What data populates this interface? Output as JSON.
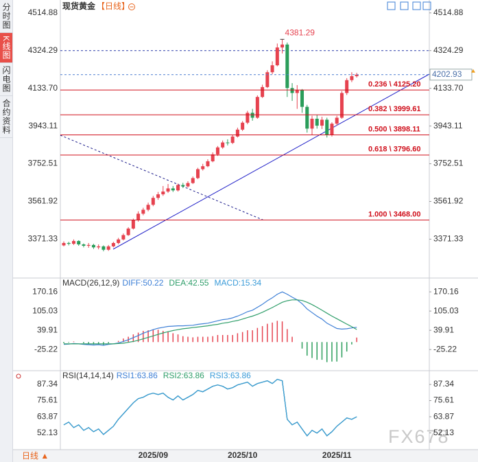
{
  "sidebar": {
    "tabs": [
      "分时图",
      "K线图",
      "闪电图",
      "合约资料"
    ],
    "active": 1
  },
  "chart_data": [
    {
      "type": "candlestick",
      "title": "现货黄金",
      "subtitle": "【日线】",
      "categories": [
        null,
        null,
        null,
        null,
        null,
        null,
        null,
        null,
        null,
        null,
        null,
        null,
        null,
        null,
        null,
        null,
        null,
        null,
        "2025/09",
        null,
        null,
        null,
        null,
        null,
        null,
        null,
        null,
        null,
        null,
        null,
        null,
        null,
        null,
        null,
        null,
        null,
        "2025/10",
        null,
        null,
        null,
        null,
        null,
        null,
        null,
        null,
        null,
        null,
        null,
        null,
        null,
        null,
        null,
        null,
        null,
        null,
        "2025/11",
        null,
        null,
        null,
        null
      ],
      "candles": {
        "open": [
          3340,
          3352,
          3348,
          3362,
          3345,
          3338,
          3342,
          3330,
          3335,
          3318,
          3335,
          3352,
          3370,
          3392,
          3425,
          3468,
          3500,
          3520,
          3545,
          3580,
          3598,
          3612,
          3628,
          3618,
          3645,
          3638,
          3655,
          3680,
          3725,
          3740,
          3765,
          3800,
          3835,
          3860,
          3858,
          3890,
          3925,
          3960,
          4010,
          3985,
          4090,
          4140,
          4215,
          4250,
          4340,
          4355,
          4135,
          4110,
          4125,
          4040,
          3930,
          3980,
          3945,
          3975,
          3900,
          3955,
          3985,
          4110,
          4175,
          4195
        ],
        "high": [
          3360,
          3358,
          3370,
          3366,
          3350,
          3352,
          3348,
          3345,
          3340,
          3342,
          3358,
          3378,
          3400,
          3432,
          3475,
          3512,
          3530,
          3556,
          3590,
          3610,
          3640,
          3650,
          3640,
          3652,
          3656,
          3664,
          3688,
          3732,
          3752,
          3775,
          3810,
          3842,
          3870,
          3876,
          3898,
          3935,
          3968,
          4020,
          4030,
          4098,
          4152,
          4225,
          4270,
          4360,
          4381.29,
          4365,
          4160,
          4150,
          4130,
          4050,
          3995,
          4000,
          3990,
          3985,
          3962,
          3995,
          4120,
          4185,
          4215,
          4212
        ],
        "low": [
          3335,
          3340,
          3342,
          3338,
          3330,
          3328,
          3322,
          3320,
          3310,
          3312,
          3330,
          3346,
          3365,
          3388,
          3420,
          3460,
          3492,
          3512,
          3538,
          3570,
          3590,
          3605,
          3610,
          3612,
          3630,
          3632,
          3650,
          3675,
          3718,
          3735,
          3760,
          3792,
          3828,
          3845,
          3852,
          3885,
          3918,
          3952,
          3970,
          3980,
          4085,
          4135,
          4205,
          4245,
          4310,
          4090,
          4070,
          4030,
          4010,
          3910,
          3900,
          3930,
          3928,
          3885,
          3890,
          3945,
          3980,
          4100,
          4165,
          4188
        ],
        "close": [
          3352,
          3348,
          3362,
          3345,
          3338,
          3342,
          3330,
          3335,
          3318,
          3335,
          3352,
          3370,
          3392,
          3425,
          3468,
          3500,
          3520,
          3545,
          3580,
          3598,
          3612,
          3628,
          3618,
          3645,
          3638,
          3655,
          3680,
          3725,
          3740,
          3765,
          3800,
          3835,
          3860,
          3858,
          3890,
          3925,
          3960,
          4010,
          3985,
          4090,
          4140,
          4215,
          4250,
          4340,
          4355,
          4135,
          4110,
          4125,
          4040,
          3930,
          3980,
          3945,
          3975,
          3900,
          3955,
          3985,
          4110,
          4175,
          4195,
          4202.93
        ]
      },
      "up_color": "#e6424f",
      "down_color": "#2a9d5a",
      "ylim": [
        3175,
        4580
      ],
      "yticks": [
        4514.88,
        4324.29,
        {
          "value": 4133.7,
          "label": "4133.70"
        },
        3943.11,
        3752.51,
        3561.92,
        3371.33
      ],
      "fib_levels": [
        {
          "value": 4125.2,
          "label": "0.236 \\ 4125.20"
        },
        {
          "value": 3999.61,
          "label": "0.382 \\ 3999.61"
        },
        {
          "value": 3898.11,
          "label": "0.500 \\ 3898.11"
        },
        {
          "value": 3796.6,
          "label": "0.618 \\ 3796.60"
        },
        {
          "value": 3468,
          "label": "1.000 \\ 3468.00"
        }
      ],
      "fib_color": "#d0101c"
    },
    {
      "type": "macd",
      "title": "MACD(26,12,9)",
      "series": [
        {
          "name": "DIFF:50.22",
          "color": "#3d7fd6",
          "values": [
            -8,
            -7,
            -5,
            -6,
            -8,
            -9,
            -10,
            -9,
            -11,
            -8,
            -6,
            -3,
            2,
            8,
            15,
            22,
            30,
            36,
            42,
            47,
            50,
            53,
            54,
            55,
            55,
            56,
            57,
            60,
            62,
            64,
            68,
            72,
            76,
            78,
            82,
            88,
            95,
            103,
            108,
            118,
            128,
            140,
            150,
            162,
            170,
            162,
            152,
            143,
            130,
            112,
            100,
            88,
            78,
            64,
            55,
            46,
            44,
            45,
            48,
            50.22
          ]
        },
        {
          "name": "DEA:42.55",
          "color": "#2f9e6a",
          "values": [
            -6,
            -6,
            -6,
            -6,
            -6,
            -6,
            -6,
            -6,
            -6,
            -6,
            -6,
            -5,
            -4,
            -1,
            2,
            6,
            11,
            16,
            21,
            26,
            31,
            35,
            39,
            42,
            45,
            47,
            49,
            51,
            53,
            55,
            58,
            60,
            64,
            66,
            70,
            73,
            78,
            83,
            88,
            94,
            101,
            109,
            117,
            126,
            135,
            140,
            143,
            143,
            141,
            135,
            127,
            118,
            108,
            98,
            88,
            79,
            70,
            61,
            52,
            42.55
          ]
        },
        {
          "name": "MACD:15.34",
          "color": "#3a9bd8",
          "values": [
            -4,
            -2,
            2,
            0,
            -4,
            -6,
            -8,
            -6,
            -10,
            -4,
            0,
            4,
            12,
            18,
            26,
            32,
            38,
            40,
            42,
            42,
            38,
            36,
            30,
            26,
            20,
            18,
            16,
            18,
            18,
            18,
            20,
            24,
            24,
            24,
            24,
            30,
            34,
            40,
            40,
            48,
            54,
            62,
            66,
            72,
            70,
            44,
            18,
            0,
            -22,
            -46,
            -54,
            -60,
            -60,
            -68,
            -66,
            -66,
            -52,
            -32,
            -8,
            15.34
          ]
        }
      ],
      "up_color": "#e6424f",
      "down_color": "#2a9d5a",
      "ylim": [
        -97,
        217
      ],
      "yticks": [
        170.16,
        105.03,
        39.91,
        -25.22
      ]
    },
    {
      "type": "line",
      "title": "RSI(14,14,14)",
      "series": [
        {
          "name": "RSI1:63.86",
          "color": "#3d7fd6",
          "values": [
            58,
            60,
            56,
            58,
            54,
            56,
            53,
            55,
            51,
            54,
            57,
            62,
            66,
            70,
            74,
            77,
            78,
            80,
            81,
            80,
            81,
            78,
            76,
            79,
            76,
            78,
            80,
            83,
            82,
            84,
            86,
            87,
            86,
            84,
            85,
            87,
            88,
            89,
            86,
            88,
            89,
            90,
            88,
            91,
            90,
            62,
            58,
            60,
            55,
            50,
            54,
            52,
            55,
            50,
            53,
            57,
            60,
            63,
            62,
            63.86
          ]
        },
        {
          "name": "RSI2:63.86",
          "color": "#2f9e6a",
          "values": [
            58,
            60,
            56,
            58,
            54,
            56,
            53,
            55,
            51,
            54,
            57,
            62,
            66,
            70,
            74,
            77,
            78,
            80,
            81,
            80,
            81,
            78,
            76,
            79,
            76,
            78,
            80,
            83,
            82,
            84,
            86,
            87,
            86,
            84,
            85,
            87,
            88,
            89,
            86,
            88,
            89,
            90,
            88,
            91,
            90,
            62,
            58,
            60,
            55,
            50,
            54,
            52,
            55,
            50,
            53,
            57,
            60,
            63,
            62,
            63.86
          ]
        },
        {
          "name": "RSI3:63.86",
          "color": "#3a9bd8",
          "values": [
            58,
            60,
            56,
            58,
            54,
            56,
            53,
            55,
            51,
            54,
            57,
            62,
            66,
            70,
            74,
            77,
            78,
            80,
            81,
            80,
            81,
            78,
            76,
            79,
            76,
            78,
            80,
            83,
            82,
            84,
            86,
            87,
            86,
            84,
            85,
            87,
            88,
            89,
            86,
            88,
            89,
            90,
            88,
            91,
            90,
            62,
            58,
            60,
            55,
            50,
            54,
            52,
            55,
            50,
            53,
            57,
            60,
            63,
            62,
            63.86
          ]
        }
      ],
      "ylim": [
        40,
        97.3
      ],
      "yticks": [
        87.34,
        75.61,
        63.87,
        52.13
      ]
    }
  ],
  "footer": {
    "period": "日线 ▲",
    "watermark": "FX678"
  }
}
